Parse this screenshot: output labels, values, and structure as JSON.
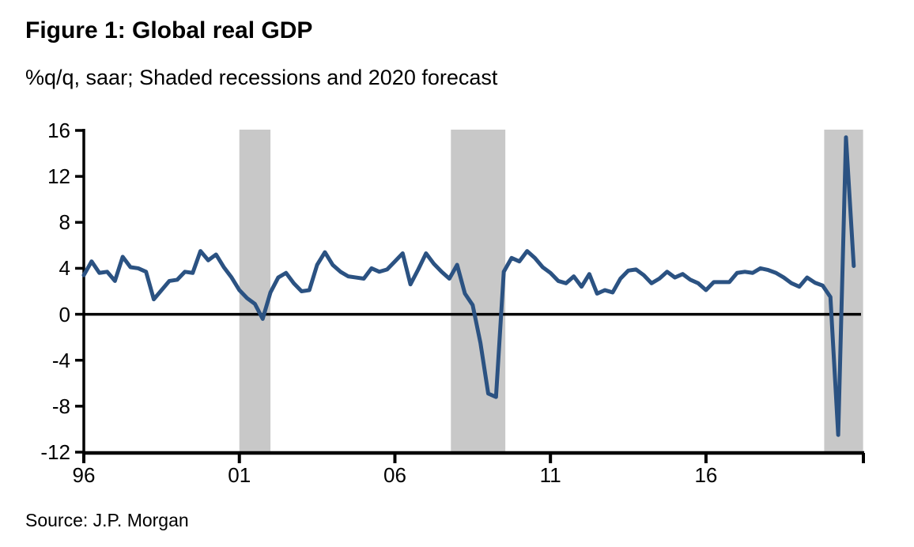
{
  "chart_data": {
    "type": "line",
    "title": "Figure 1: Global real GDP",
    "subtitle": "%q/q, saar; Shaded recessions and 2020 forecast",
    "source": "Source: J.P. Morgan",
    "series_name": "Global real GDP, %q/q saar",
    "frequency": "quarterly",
    "x_start": 1996.0,
    "x_step": 0.25,
    "x_range": [
      1996.0,
      2021.06
    ],
    "ylim": [
      -12,
      16
    ],
    "grid": "off",
    "legend": "none",
    "line_color": "#2B5282",
    "band_color": "#C8C8C8",
    "axis_color": "#000000",
    "y_ticks": [
      16,
      12,
      8,
      4,
      0,
      -4,
      -8,
      -12
    ],
    "y_tick_labels": [
      "16",
      "12",
      "8",
      "4",
      "0",
      "-4",
      "-8",
      "-12"
    ],
    "x_tick_years": [
      1996,
      2001,
      2006,
      2011,
      2016
    ],
    "x_tick_labels": [
      "96",
      "01",
      "06",
      "11",
      "16"
    ],
    "recession_bands": [
      [
        2001.0,
        2002.0
      ],
      [
        2007.8,
        2009.55
      ],
      [
        2019.8,
        2021.05
      ]
    ],
    "values": [
      3.4,
      4.6,
      3.6,
      3.7,
      2.9,
      5.0,
      4.1,
      4.0,
      3.7,
      1.3,
      2.1,
      2.9,
      3.0,
      3.7,
      3.6,
      5.5,
      4.7,
      5.2,
      4.1,
      3.2,
      2.1,
      1.4,
      0.9,
      -0.4,
      1.9,
      3.2,
      3.6,
      2.7,
      2.0,
      2.1,
      4.3,
      5.4,
      4.3,
      3.7,
      3.3,
      3.2,
      3.1,
      4.0,
      3.7,
      3.9,
      4.6,
      5.3,
      2.6,
      3.9,
      5.3,
      4.4,
      3.7,
      3.1,
      4.3,
      1.8,
      0.8,
      -2.5,
      -6.9,
      -7.2,
      3.7,
      4.9,
      4.6,
      5.5,
      4.9,
      4.1,
      3.6,
      2.9,
      2.7,
      3.3,
      2.4,
      3.5,
      1.8,
      2.1,
      1.9,
      3.1,
      3.8,
      3.9,
      3.4,
      2.7,
      3.1,
      3.7,
      3.2,
      3.5,
      3.0,
      2.7,
      2.1,
      2.8,
      2.8,
      2.8,
      3.6,
      3.7,
      3.6,
      4.0,
      3.85,
      3.6,
      3.2,
      2.7,
      2.4,
      3.2,
      2.75,
      2.5,
      1.5,
      -10.5,
      15.4,
      4.2
    ]
  }
}
